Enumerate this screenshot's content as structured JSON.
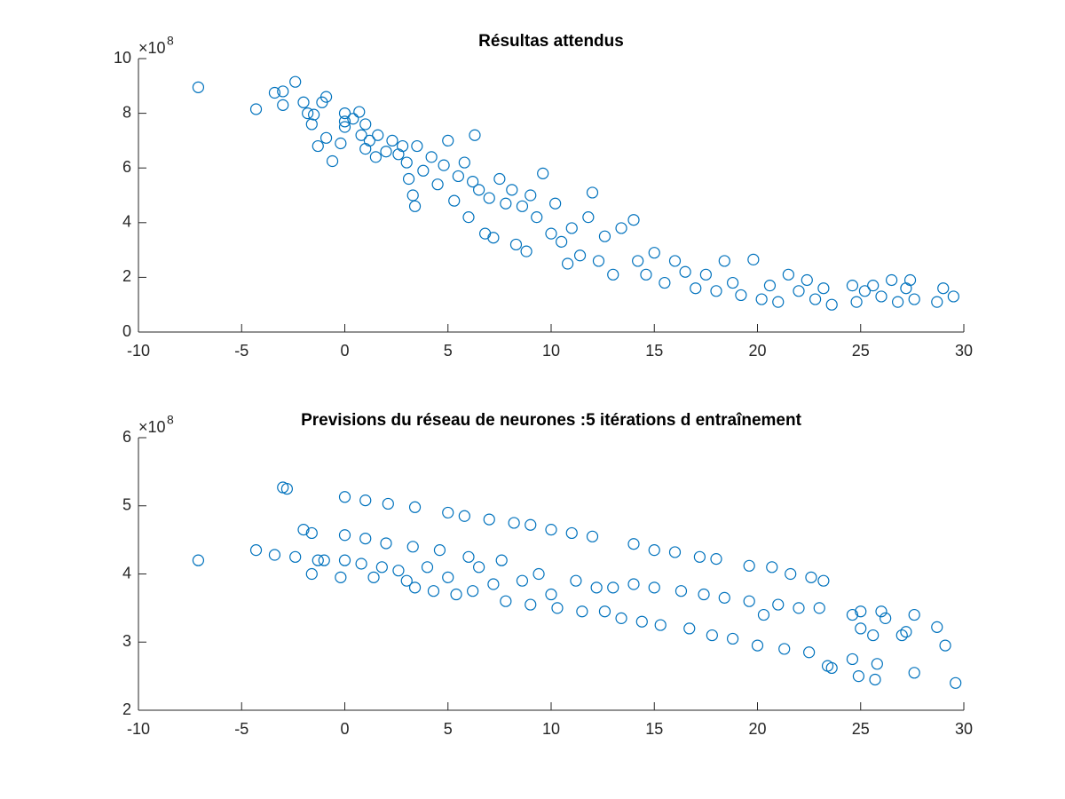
{
  "chart_data": [
    {
      "type": "scatter",
      "title": "Résultas attendus",
      "y_multiplier": {
        "base": "×10",
        "exponent": "8"
      },
      "color": "#0072bd",
      "xlim": [
        -10,
        30
      ],
      "xticks": [
        -10,
        -5,
        0,
        5,
        10,
        15,
        20,
        25,
        30
      ],
      "ylim": [
        0,
        10
      ],
      "yticks": [
        0,
        2,
        4,
        6,
        8,
        10
      ],
      "x": [
        -7.1,
        -4.3,
        -3.4,
        -3,
        -3,
        -2.4,
        -2,
        -1.8,
        -1.6,
        -1.5,
        -1.3,
        -1.1,
        -0.9,
        -0.9,
        -0.6,
        -0.2,
        0,
        0,
        0,
        0.4,
        0.7,
        0.8,
        1,
        1,
        1.2,
        1.5,
        1.6,
        2,
        2.3,
        2.6,
        2.8,
        3,
        3.1,
        3.3,
        3.4,
        3.5,
        3.8,
        4.2,
        4.5,
        4.8,
        5,
        5.3,
        5.5,
        5.8,
        6,
        6.2,
        6.3,
        6.5,
        6.8,
        7,
        7.2,
        7.5,
        7.8,
        8.1,
        8.3,
        8.6,
        8.8,
        9,
        9.3,
        9.6,
        10,
        10.2,
        10.5,
        10.8,
        11,
        11.4,
        11.8,
        12,
        12.3,
        12.6,
        13,
        13.4,
        14,
        14.2,
        14.6,
        15,
        15.5,
        16,
        16.5,
        17,
        17.5,
        18,
        18.4,
        18.8,
        19.2,
        19.8,
        20.2,
        20.6,
        21,
        21.5,
        22,
        22.4,
        22.8,
        23.2,
        23.6,
        24.6,
        24.8,
        25.2,
        25.6,
        26,
        26.5,
        26.8,
        27.2,
        27.6,
        27.4,
        28.7,
        29,
        29.5
      ],
      "values": [
        8.95,
        8.15,
        8.75,
        8.8,
        8.3,
        9.15,
        8.4,
        8,
        7.6,
        7.95,
        6.8,
        8.4,
        8.6,
        7.1,
        6.25,
        6.9,
        8,
        7.7,
        7.5,
        7.8,
        8.05,
        7.2,
        7.6,
        6.7,
        7,
        6.4,
        7.2,
        6.6,
        7,
        6.5,
        6.8,
        6.2,
        5.6,
        5,
        4.6,
        6.8,
        5.9,
        6.4,
        5.4,
        6.1,
        7,
        4.8,
        5.7,
        6.2,
        4.2,
        5.5,
        7.2,
        5.2,
        3.6,
        4.9,
        3.45,
        5.6,
        4.7,
        5.2,
        3.2,
        4.6,
        2.95,
        5,
        4.2,
        5.8,
        3.6,
        4.7,
        3.3,
        2.5,
        3.8,
        2.8,
        4.2,
        5.1,
        2.6,
        3.5,
        2.1,
        3.8,
        4.1,
        2.6,
        2.1,
        2.9,
        1.8,
        2.6,
        2.2,
        1.6,
        2.1,
        1.5,
        2.6,
        1.8,
        1.35,
        2.65,
        1.2,
        1.7,
        1.1,
        2.1,
        1.5,
        1.9,
        1.2,
        1.6,
        1,
        1.7,
        1.1,
        1.5,
        1.7,
        1.3,
        1.9,
        1.1,
        1.6,
        1.2,
        1.9,
        1.1,
        1.6,
        1.3
      ]
    },
    {
      "type": "scatter",
      "title": "Previsions du réseau de neurones :5 itérations d entraînement",
      "y_multiplier": {
        "base": "×10",
        "exponent": "8"
      },
      "color": "#0072bd",
      "xlim": [
        -10,
        30
      ],
      "xticks": [
        -10,
        -5,
        0,
        5,
        10,
        15,
        20,
        25,
        30
      ],
      "ylim": [
        2,
        6
      ],
      "yticks": [
        2,
        3,
        4,
        5,
        6
      ],
      "x": [
        -7.1,
        -4.3,
        -3.4,
        -3,
        -2.8,
        -2.4,
        -2,
        -1.6,
        -1.6,
        -1.3,
        -1,
        -0.2,
        0,
        0,
        0,
        0.8,
        1,
        1,
        1.4,
        1.8,
        2.1,
        2,
        2.6,
        3,
        3.3,
        3.4,
        3.4,
        4,
        4.3,
        4.6,
        5,
        5,
        5.4,
        5.8,
        6,
        6.2,
        6.5,
        7,
        7.2,
        7.6,
        7.8,
        8.2,
        8.6,
        9,
        9,
        9.4,
        10,
        10,
        10.3,
        11,
        11.2,
        11.5,
        12,
        12.2,
        12.6,
        13,
        13.4,
        14,
        14,
        14.4,
        15,
        15,
        15.3,
        16,
        16.3,
        16.7,
        17.2,
        17.4,
        17.8,
        18,
        18.4,
        18.8,
        19.6,
        19.6,
        20,
        20.3,
        20.7,
        21,
        21.3,
        21.6,
        22,
        22.5,
        22.6,
        23,
        23.2,
        23.4,
        23.6,
        24.6,
        24.6,
        24.9,
        25,
        25,
        25.6,
        25.7,
        25.8,
        26,
        26.2,
        27,
        27.2,
        27.6,
        27.6,
        28.7,
        29.1,
        29.6
      ],
      "values": [
        4.2,
        4.35,
        4.28,
        5.27,
        5.25,
        4.25,
        4.65,
        4.6,
        4,
        4.2,
        4.2,
        3.95,
        5.13,
        4.57,
        4.2,
        4.15,
        5.08,
        4.52,
        3.95,
        4.1,
        5.03,
        4.45,
        4.05,
        3.9,
        4.4,
        4.98,
        3.8,
        4.1,
        3.75,
        4.35,
        4.9,
        3.95,
        3.7,
        4.85,
        4.25,
        3.75,
        4.1,
        4.8,
        3.85,
        4.2,
        3.6,
        4.75,
        3.9,
        4.72,
        3.55,
        4,
        4.65,
        3.7,
        3.5,
        4.6,
        3.9,
        3.45,
        4.55,
        3.8,
        3.45,
        3.8,
        3.35,
        4.44,
        3.85,
        3.3,
        4.35,
        3.8,
        3.25,
        4.32,
        3.75,
        3.2,
        4.25,
        3.7,
        3.1,
        4.22,
        3.65,
        3.05,
        4.12,
        3.6,
        2.95,
        3.4,
        4.1,
        3.55,
        2.9,
        4,
        3.5,
        2.85,
        3.95,
        3.5,
        3.9,
        2.65,
        2.62,
        3.4,
        2.75,
        2.5,
        3.45,
        3.2,
        3.1,
        2.45,
        2.68,
        3.45,
        3.35,
        3.1,
        3.15,
        3.4,
        2.55,
        3.22,
        2.95,
        2.4
      ]
    }
  ]
}
